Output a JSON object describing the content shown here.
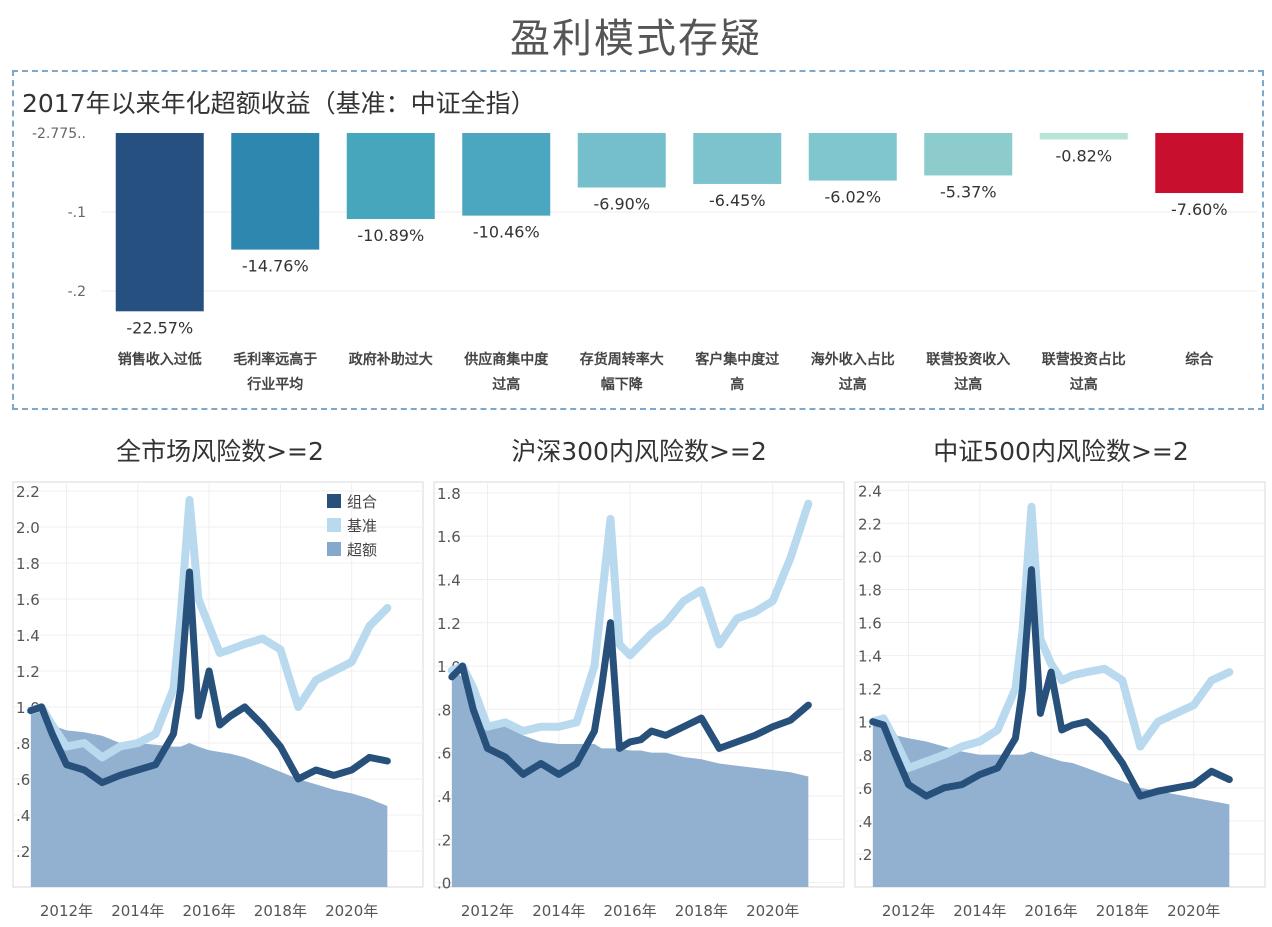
{
  "page_title": "盈利模式存疑",
  "chart_data": [
    {
      "type": "bar",
      "title": "2017年以来年化超额收益（基准：中证全指）",
      "categories": [
        "销售收入过低",
        "毛利率远高于行业平均",
        "政府补助过大",
        "供应商集中度过高",
        "存货周转率大幅下降",
        "客户集中度过高",
        "海外收入占比过高",
        "联营投资收入过高",
        "联营投资占比过高",
        "综合"
      ],
      "category_lines": [
        [
          "销售收入过低"
        ],
        [
          "毛利率远高于",
          "行业平均"
        ],
        [
          "政府补助过大"
        ],
        [
          "供应商集中度",
          "过高"
        ],
        [
          "存货周转率大",
          "幅下降"
        ],
        [
          "客户集中度过",
          "高"
        ],
        [
          "海外收入占比",
          "过高"
        ],
        [
          "联营投资收入",
          "过高"
        ],
        [
          "联营投资占比",
          "过高"
        ],
        [
          "综合"
        ]
      ],
      "values": [
        -0.2257,
        -0.1476,
        -0.1089,
        -0.1046,
        -0.069,
        -0.0645,
        -0.0602,
        -0.0537,
        -0.0082,
        -0.076
      ],
      "value_labels": [
        "-22.57%",
        "-14.76%",
        "-10.89%",
        "-10.46%",
        "-6.90%",
        "-6.45%",
        "-6.02%",
        "-5.37%",
        "-0.82%",
        "-7.60%"
      ],
      "colors": [
        "#25507f",
        "#2e87ae",
        "#46a6bc",
        "#4aa7bf",
        "#74bfcb",
        "#7cc3cd",
        "#80c6cf",
        "#8dcccd",
        "#b8e3d7",
        "#c8102e"
      ],
      "yticks": [
        {
          "value": 0,
          "label": "-2.775.."
        },
        {
          "value": -0.1,
          "label": "-.1"
        },
        {
          "value": -0.2,
          "label": "-.2"
        }
      ],
      "ylim": [
        -0.225,
        0
      ]
    },
    {
      "type": "area",
      "title": "全市场风险数>=2",
      "legend": [
        "组合",
        "基准",
        "超额"
      ],
      "ylim": [
        0,
        2.25
      ],
      "yticks": [
        {
          "value": 0.2,
          "label": ".2"
        },
        {
          "value": 0.4,
          "label": ".4"
        },
        {
          "value": 0.6,
          "label": ".6"
        },
        {
          "value": 0.8,
          "label": ".8"
        },
        {
          "value": 1.0,
          "label": "1.0"
        },
        {
          "value": 1.2,
          "label": "1.2"
        },
        {
          "value": 1.4,
          "label": "1.4"
        },
        {
          "value": 1.6,
          "label": "1.6"
        },
        {
          "value": 1.8,
          "label": "1.8"
        },
        {
          "value": 2.0,
          "label": "2.0"
        },
        {
          "value": 2.2,
          "label": "2.2"
        }
      ],
      "xlim": [
        2010.5,
        2022.0
      ],
      "xticks": [
        {
          "value": 2012,
          "label": "2012年"
        },
        {
          "value": 2014,
          "label": "2014年"
        },
        {
          "value": 2016,
          "label": "2016年"
        },
        {
          "value": 2018,
          "label": "2018年"
        },
        {
          "value": 2020,
          "label": "2020年"
        }
      ],
      "x": [
        2011.0,
        2011.3,
        2011.6,
        2012.0,
        2012.5,
        2013.0,
        2013.5,
        2014.0,
        2014.5,
        2015.0,
        2015.2,
        2015.45,
        2015.7,
        2016.0,
        2016.3,
        2016.6,
        2017.0,
        2017.5,
        2018.0,
        2018.5,
        2019.0,
        2019.5,
        2020.0,
        2020.5,
        2021.0
      ],
      "series": [
        {
          "name": "组合",
          "values": [
            0.98,
            1.0,
            0.85,
            0.68,
            0.65,
            0.58,
            0.62,
            0.65,
            0.68,
            0.85,
            1.1,
            1.75,
            0.95,
            1.2,
            0.9,
            0.95,
            1.0,
            0.9,
            0.78,
            0.6,
            0.65,
            0.62,
            0.65,
            0.72,
            0.7
          ]
        },
        {
          "name": "基准",
          "values": [
            0.98,
            1.0,
            0.9,
            0.78,
            0.8,
            0.72,
            0.78,
            0.8,
            0.85,
            1.1,
            1.5,
            2.15,
            1.6,
            1.45,
            1.3,
            1.32,
            1.35,
            1.38,
            1.32,
            1.0,
            1.15,
            1.2,
            1.25,
            1.45,
            1.55
          ]
        },
        {
          "name": "超额",
          "values": [
            0.98,
            0.97,
            0.9,
            0.87,
            0.86,
            0.84,
            0.8,
            0.8,
            0.79,
            0.78,
            0.78,
            0.8,
            0.78,
            0.76,
            0.75,
            0.74,
            0.72,
            0.68,
            0.64,
            0.6,
            0.57,
            0.54,
            0.52,
            0.49,
            0.45
          ]
        }
      ]
    },
    {
      "type": "area",
      "title": "沪深300内风险数>=2",
      "ylim": [
        -0.02,
        1.85
      ],
      "yticks": [
        {
          "value": 0.0,
          "label": ".0"
        },
        {
          "value": 0.2,
          "label": ".2"
        },
        {
          "value": 0.4,
          "label": ".4"
        },
        {
          "value": 0.6,
          "label": ".6"
        },
        {
          "value": 0.8,
          "label": ".8"
        },
        {
          "value": 1.0,
          "label": "1.0"
        },
        {
          "value": 1.2,
          "label": "1.2"
        },
        {
          "value": 1.4,
          "label": "1.4"
        },
        {
          "value": 1.6,
          "label": "1.6"
        },
        {
          "value": 1.8,
          "label": "1.8"
        }
      ],
      "xlim": [
        2010.5,
        2022.0
      ],
      "xticks": [
        {
          "value": 2012,
          "label": "2012年"
        },
        {
          "value": 2014,
          "label": "2014年"
        },
        {
          "value": 2016,
          "label": "2016年"
        },
        {
          "value": 2018,
          "label": "2018年"
        },
        {
          "value": 2020,
          "label": "2020年"
        }
      ],
      "x": [
        2011.0,
        2011.3,
        2011.6,
        2012.0,
        2012.5,
        2013.0,
        2013.5,
        2014.0,
        2014.5,
        2015.0,
        2015.2,
        2015.45,
        2015.7,
        2016.0,
        2016.3,
        2016.6,
        2017.0,
        2017.5,
        2018.0,
        2018.5,
        2019.0,
        2019.5,
        2020.0,
        2020.5,
        2021.0
      ],
      "series": [
        {
          "name": "组合",
          "values": [
            0.95,
            1.0,
            0.8,
            0.62,
            0.58,
            0.5,
            0.55,
            0.5,
            0.55,
            0.7,
            0.9,
            1.2,
            0.62,
            0.65,
            0.66,
            0.7,
            0.68,
            0.72,
            0.76,
            0.62,
            0.65,
            0.68,
            0.72,
            0.75,
            0.82
          ]
        },
        {
          "name": "基准",
          "values": [
            0.98,
            1.0,
            0.9,
            0.72,
            0.74,
            0.7,
            0.72,
            0.72,
            0.74,
            1.0,
            1.3,
            1.68,
            1.1,
            1.05,
            1.1,
            1.15,
            1.2,
            1.3,
            1.35,
            1.1,
            1.22,
            1.25,
            1.3,
            1.5,
            1.75
          ]
        },
        {
          "name": "超额",
          "values": [
            0.98,
            0.95,
            0.85,
            0.74,
            0.72,
            0.68,
            0.65,
            0.64,
            0.64,
            0.64,
            0.62,
            0.62,
            0.62,
            0.61,
            0.61,
            0.6,
            0.6,
            0.58,
            0.57,
            0.55,
            0.54,
            0.53,
            0.52,
            0.51,
            0.49
          ]
        }
      ]
    },
    {
      "type": "area",
      "title": "中证500内风险数>=2",
      "ylim": [
        0,
        2.45
      ],
      "yticks": [
        {
          "value": 0.2,
          "label": ".2"
        },
        {
          "value": 0.4,
          "label": ".4"
        },
        {
          "value": 0.6,
          "label": ".6"
        },
        {
          "value": 0.8,
          "label": ".8"
        },
        {
          "value": 1.0,
          "label": "1.0"
        },
        {
          "value": 1.2,
          "label": "1.2"
        },
        {
          "value": 1.4,
          "label": "1.4"
        },
        {
          "value": 1.6,
          "label": "1.6"
        },
        {
          "value": 1.8,
          "label": "1.8"
        },
        {
          "value": 2.0,
          "label": "2.0"
        },
        {
          "value": 2.2,
          "label": "2.2"
        },
        {
          "value": 2.4,
          "label": "2.4"
        }
      ],
      "xlim": [
        2010.5,
        2022.0
      ],
      "xticks": [
        {
          "value": 2012,
          "label": "2012年"
        },
        {
          "value": 2014,
          "label": "2014年"
        },
        {
          "value": 2016,
          "label": "2016年"
        },
        {
          "value": 2018,
          "label": "2018年"
        },
        {
          "value": 2020,
          "label": "2020年"
        }
      ],
      "x": [
        2011.0,
        2011.3,
        2011.6,
        2012.0,
        2012.5,
        2013.0,
        2013.5,
        2014.0,
        2014.5,
        2015.0,
        2015.2,
        2015.45,
        2015.7,
        2016.0,
        2016.3,
        2016.6,
        2017.0,
        2017.5,
        2018.0,
        2018.5,
        2019.0,
        2019.5,
        2020.0,
        2020.5,
        2021.0
      ],
      "series": [
        {
          "name": "组合",
          "values": [
            1.0,
            0.98,
            0.82,
            0.62,
            0.55,
            0.6,
            0.62,
            0.68,
            0.72,
            0.9,
            1.2,
            1.92,
            1.05,
            1.3,
            0.95,
            0.98,
            1.0,
            0.9,
            0.75,
            0.55,
            0.58,
            0.6,
            0.62,
            0.7,
            0.65
          ]
        },
        {
          "name": "基准",
          "values": [
            1.0,
            1.02,
            0.9,
            0.72,
            0.76,
            0.8,
            0.85,
            0.88,
            0.95,
            1.2,
            1.55,
            2.3,
            1.5,
            1.35,
            1.25,
            1.28,
            1.3,
            1.32,
            1.25,
            0.85,
            1.0,
            1.05,
            1.1,
            1.25,
            1.3
          ]
        },
        {
          "name": "超额",
          "values": [
            1.0,
            0.97,
            0.92,
            0.9,
            0.88,
            0.85,
            0.82,
            0.8,
            0.8,
            0.8,
            0.8,
            0.82,
            0.8,
            0.78,
            0.76,
            0.75,
            0.72,
            0.68,
            0.64,
            0.6,
            0.58,
            0.56,
            0.54,
            0.52,
            0.5
          ]
        }
      ]
    }
  ],
  "styles": {
    "portfolio_color": "#27507b",
    "benchmark_color": "#b9d9ef",
    "excess_color": "#86a9cb"
  }
}
